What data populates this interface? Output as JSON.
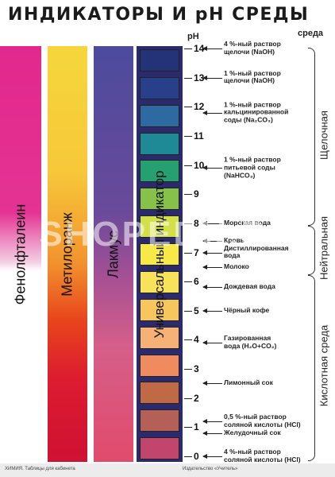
{
  "title_main": "ИНДИКАТОРЫ И",
  "title_ph": "pH",
  "title_env": "СРЕДЫ",
  "axis_label": "pH",
  "env_top": "среда",
  "strips": [
    {
      "name": "Фенолфталеин"
    },
    {
      "name": "Метилоранж"
    },
    {
      "name": "Лакмус"
    }
  ],
  "universal_label": "Универсальный индикатор",
  "universal_colors": [
    "#243378",
    "#283f8a",
    "#2d6aa1",
    "#1e8a96",
    "#26a070",
    "#86c24a",
    "#d2e04a",
    "#f7e948",
    "#f7e25a",
    "#f7c75e",
    "#f6b276",
    "#ef8b5f",
    "#c06a45",
    "#b56056",
    "#c2456e"
  ],
  "ph_ticks": [
    "14",
    "13",
    "12",
    "11",
    "10",
    "9",
    "8",
    "7",
    "6",
    "5",
    "4",
    "3",
    "2",
    "1",
    "0"
  ],
  "solutions": [
    {
      "text_lines": [
        "4 %-ный раствор",
        "щелочи (NaOH)"
      ],
      "ph": 14
    },
    {
      "text_lines": [
        "1 %-ный раствор",
        "щелочи (NaOH)"
      ],
      "ph": 13
    },
    {
      "text_lines": [
        "1 %-ный раствор",
        "кальцинированной",
        "соды (Na₂CO₃)"
      ],
      "ph": 11.8
    },
    {
      "text_lines": [
        "1 %-ный раствор",
        "питьевой соды",
        "(NaHCO₃)"
      ],
      "ph": 9.9
    },
    {
      "text_lines": [
        "Морская вода"
      ],
      "ph": 8
    },
    {
      "text_lines": [
        "Кровь"
      ],
      "ph": 7.4
    },
    {
      "text_lines": [
        "Дистиллированная",
        "вода"
      ],
      "ph": 7
    },
    {
      "text_lines": [
        "Молоко"
      ],
      "ph": 6.5
    },
    {
      "text_lines": [
        "Дождевая вода"
      ],
      "ph": 5.8
    },
    {
      "text_lines": [
        "Чёрный кофе"
      ],
      "ph": 5
    },
    {
      "text_lines": [
        "Газированная",
        "вода (H₂O+CO₂)"
      ],
      "ph": 3.9
    },
    {
      "text_lines": [
        "Лимонный сок"
      ],
      "ph": 2.5
    },
    {
      "text_lines": [
        "0,5 %-ный раствор",
        "соляной кислоты (HCl)"
      ],
      "ph": 1.2
    },
    {
      "text_lines": [
        "Желудочный сок"
      ],
      "ph": 0.8
    },
    {
      "text_lines": [
        "4 %-ный раствор",
        "соляной кислоты (HCl)"
      ],
      "ph": 0
    }
  ],
  "env_labels": {
    "alkaline": "Щелочная",
    "neutral": "Нейтральная",
    "acidic": "Кислотная среда"
  },
  "watermark": "SHOPEDU.RU",
  "footer_left": "ХИМИЯ. Таблицы для кабинета",
  "footer_right": "Издательство «Учитель»"
}
